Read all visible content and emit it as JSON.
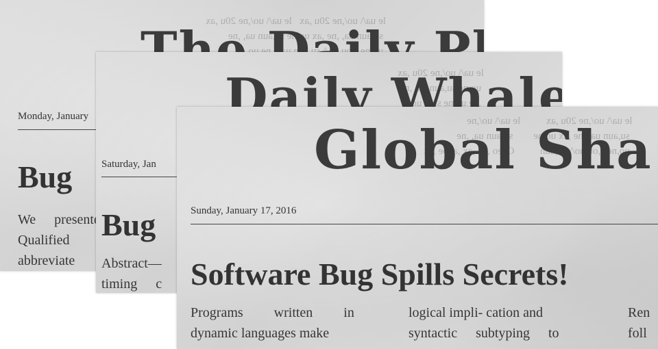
{
  "papers": [
    {
      "masthead": "The Daily Planet",
      "date": "Monday, January",
      "headline": "Bug",
      "body_lines": [
        "We presented",
        "Qualified",
        "abbreviate"
      ]
    },
    {
      "masthead": "Daily Whale",
      "date": "Saturday, Jan",
      "headline": "Bug",
      "body_lines": [
        "Abstract—",
        "timing c"
      ]
    },
    {
      "masthead": "Global Sha",
      "date": "Sunday, January 17, 2016",
      "headline": "Software Bug Spills Secrets!",
      "columns": [
        [
          "Programs written in",
          "dynamic languages make"
        ],
        [
          "logical impli- cation and",
          "syntactic subtyping to"
        ],
        [
          "Ren",
          "foll"
        ]
      ]
    }
  ]
}
